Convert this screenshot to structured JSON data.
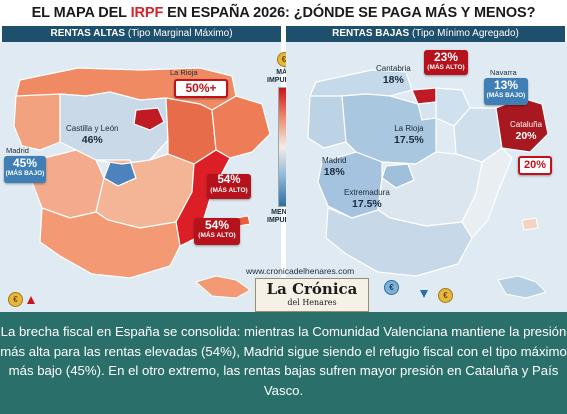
{
  "title": {
    "part1": "EL MAPA DEL ",
    "highlight": "IRPF",
    "part2": " EN ESPAÑA 2026: ¿DÓNDE SE PAGA MÁS Y MENOS?"
  },
  "left_panel": {
    "heading": "RENTAS ALTAS",
    "subheading": "(Tipo Marginal Máximo)"
  },
  "right_panel": {
    "heading": "RENTAS BAJAS",
    "subheading": "(Tipo Mínimo Agregado)"
  },
  "legend": {
    "top": "MÁS IMPUESTOS",
    "bottom": "MENOS IMPUESTOS",
    "top_color": "#c8151c",
    "bottom_color": "#2e6ea6"
  },
  "left_regions": {
    "la_rioja": {
      "name": "La Rioja",
      "value": "50%+"
    },
    "castilla_leon": {
      "name": "Castilla y León",
      "value": "46%"
    },
    "madrid": {
      "name": "Madrid",
      "value": "45%",
      "note": "(MÁS BAJO)"
    },
    "valencia_a": {
      "value": "54%",
      "note": "(MÁS ALTO)"
    },
    "valencia_b": {
      "value": "54%",
      "note": "(MÁS ALTO)"
    }
  },
  "right_regions": {
    "cantabria": {
      "name": "Cantabria",
      "value": "18%"
    },
    "pais_vasco": {
      "value": "23%",
      "note": "(MÁS ALTO)"
    },
    "navarra": {
      "name": "Navarra",
      "value": "13%",
      "note": "(MÁS BAJO)"
    },
    "la_rioja": {
      "name": "La Rioja",
      "value": "17.5%"
    },
    "cataluna": {
      "name": "Cataluña",
      "value": "20%"
    },
    "cataluna_badge": {
      "value": "20%"
    },
    "madrid": {
      "name": "Madrid",
      "value": "18%"
    },
    "extremadura": {
      "name": "Extremadura",
      "value": "17.5%"
    }
  },
  "website": "www.cronicadelhenares.com",
  "logo": {
    "line1": "La Crónica",
    "line2": "del Henares"
  },
  "caption": "La brecha fiscal en España se consolida: mientras la Comunidad Valenciana mantiene la presión más alta para las rentas elevadas (54%), Madrid sigue siendo el refugio fiscal con el tipo máximo más bajo (45%). En el otro extremo, las rentas bajas sufren mayor presión en Cataluña y País Vasco.",
  "colors": {
    "high": "#b5121b",
    "low": "#3f7fb5",
    "banner": "#1e4f6c",
    "caption_bg": "#2b6f6a"
  },
  "icons": {
    "coin": "euro-coin-icon"
  },
  "coin_symbol": "€"
}
